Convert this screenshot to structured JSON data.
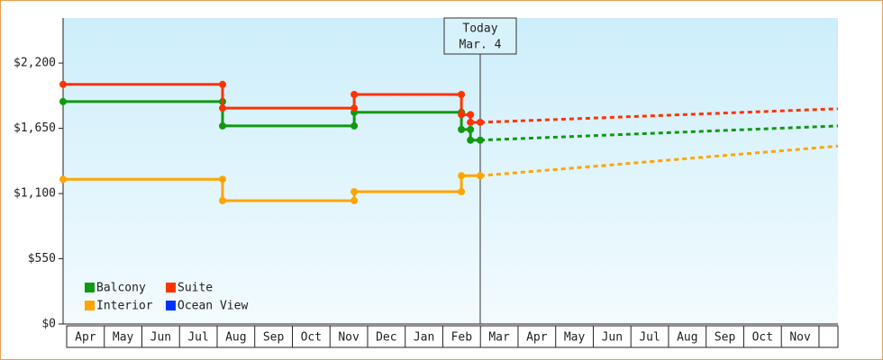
{
  "chart_data": {
    "type": "step-line",
    "categories": [
      "Apr",
      "May",
      "Jun",
      "Jul",
      "Aug",
      "Sep",
      "Oct",
      "Nov",
      "Dec",
      "Jan",
      "Feb",
      "Mar",
      "Apr",
      "May",
      "Jun",
      "Jul",
      "Aug",
      "Sep",
      "Oct",
      "Nov"
    ],
    "xlim": [
      0,
      20.6
    ],
    "ylim": [
      0,
      2580
    ],
    "yticks": [
      {
        "value": 0,
        "label": "$0"
      },
      {
        "value": 550,
        "label": "$550"
      },
      {
        "value": 1100,
        "label": "$1,100"
      },
      {
        "value": 1650,
        "label": "$1,650"
      },
      {
        "value": 2200,
        "label": "$2,200"
      }
    ],
    "today": {
      "label": "Today",
      "date": "Mar. 4",
      "x": 11.09
    },
    "series": [
      {
        "name": "Balcony",
        "color": "#119911",
        "x": [
          0,
          4.24,
          4.24,
          7.74,
          7.74,
          10.59,
          10.59,
          10.83,
          10.83,
          11.09
        ],
        "values": [
          1875,
          1875,
          1670,
          1670,
          1785,
          1785,
          1640,
          1640,
          1550,
          1550
        ],
        "projection": {
          "x": [
            11.09,
            20.6
          ],
          "values": [
            1550,
            1670
          ]
        }
      },
      {
        "name": "Suite",
        "color": "#ff3300",
        "x": [
          0,
          4.24,
          4.24,
          7.74,
          7.74,
          10.59,
          10.59,
          10.83,
          10.83,
          11.09
        ],
        "values": [
          2020,
          2020,
          1820,
          1820,
          1935,
          1935,
          1765,
          1765,
          1700,
          1700
        ],
        "projection": {
          "x": [
            11.09,
            20.6
          ],
          "values": [
            1700,
            1815
          ]
        }
      },
      {
        "name": "Interior",
        "color": "#ffa500",
        "x": [
          0,
          4.24,
          4.24,
          7.74,
          7.74,
          10.59,
          10.59,
          11.09
        ],
        "values": [
          1220,
          1220,
          1040,
          1040,
          1115,
          1115,
          1250,
          1250
        ],
        "projection": {
          "x": [
            11.09,
            20.6
          ],
          "values": [
            1250,
            1500
          ]
        }
      },
      {
        "name": "Ocean View",
        "color": "#0033ff",
        "x": [],
        "values": []
      }
    ]
  }
}
